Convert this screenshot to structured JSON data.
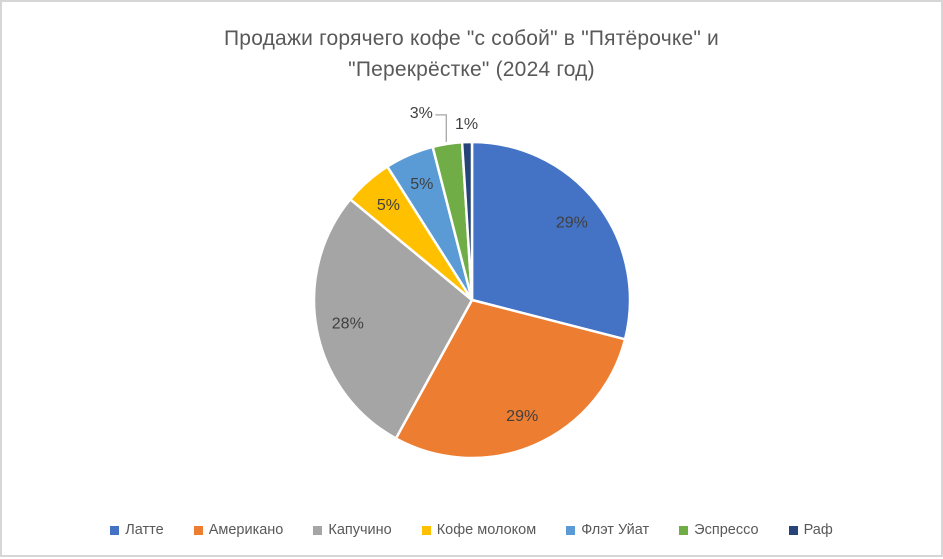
{
  "page": {
    "background": "#ffffff",
    "border_color": "#d6d6d6"
  },
  "chart_data": {
    "type": "pie",
    "title": "Продажи горячего кофе \"с собой\" в \"Пятёрочке\" и \"Перекрёстке\" (2024 год)",
    "title_lines": [
      "Продажи горячего кофе \"с собой\" в \"Пятёрочке\" и",
      "\"Перекрёстке\" (2024 год)"
    ],
    "unit": "%",
    "start_angle_deg": 0,
    "direction": "clockwise",
    "legend_position": "bottom",
    "title_color": "#595959",
    "label_color": "#404040",
    "legend_text_color": "#595959",
    "leader_line_color": "#A6A6A6",
    "slice_border_color": "#ffffff",
    "slices": [
      {
        "label": "Латте",
        "value": 29,
        "percent_label": "29%",
        "color": "#4472C4",
        "label_placement": "inside"
      },
      {
        "label": "Американо",
        "value": 29,
        "percent_label": "29%",
        "color": "#ED7D31",
        "label_placement": "inside"
      },
      {
        "label": "Капучино",
        "value": 28,
        "percent_label": "28%",
        "color": "#A5A5A5",
        "label_placement": "inside"
      },
      {
        "label": "Кофе молоком",
        "value": 5,
        "percent_label": "5%",
        "color": "#FFC000",
        "label_placement": "inside"
      },
      {
        "label": "Флэт Уйат",
        "value": 5,
        "percent_label": "5%",
        "color": "#5B9BD5",
        "label_placement": "inside"
      },
      {
        "label": "Эспрессо",
        "value": 3,
        "percent_label": "3%",
        "color": "#70AD47",
        "label_placement": "outside-leader"
      },
      {
        "label": "Раф",
        "value": 1,
        "percent_label": "1%",
        "color": "#264478",
        "label_placement": "outside"
      }
    ]
  }
}
